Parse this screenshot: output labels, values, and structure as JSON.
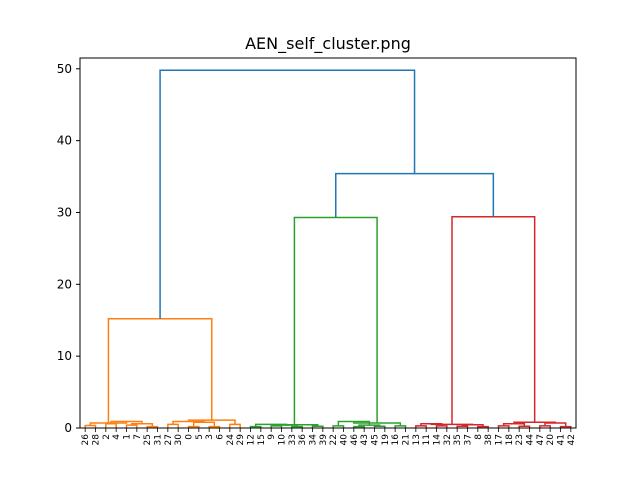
{
  "chart_data": {
    "type": "dendrogram",
    "title": "AEN_self_cluster.png",
    "xlabel": "",
    "ylabel": "",
    "ylim": [
      0,
      51.5
    ],
    "y_ticks": [
      0,
      10,
      20,
      30,
      40,
      50
    ],
    "grid": false,
    "leaf_labels": [
      "26",
      "28",
      "2",
      "4",
      "1",
      "7",
      "25",
      "31",
      "27",
      "30",
      "0",
      "5",
      "3",
      "6",
      "24",
      "29",
      "12",
      "15",
      "9",
      "10",
      "33",
      "36",
      "34",
      "39",
      "22",
      "40",
      "46",
      "43",
      "45",
      "19",
      "16",
      "21",
      "13",
      "11",
      "14",
      "32",
      "35",
      "37",
      "8",
      "38",
      "17",
      "18",
      "23",
      "44",
      "47",
      "20",
      "41",
      "42"
    ],
    "colors": {
      "orange": "#ff7f0e",
      "green": "#2ca02c",
      "red": "#d62728",
      "blue": "#1f77b4"
    },
    "links": [
      {
        "left": 0,
        "right": 1,
        "height": 0.35,
        "color": "orange"
      },
      {
        "left": 2,
        "right": 3,
        "height": 0.6,
        "color": "orange"
      },
      {
        "left": 4,
        "right": 5,
        "height": 0.4,
        "color": "orange"
      },
      {
        "left": 6,
        "right": 7,
        "height": 0.2,
        "color": "orange"
      },
      {
        "left": "4-5",
        "right": "6-7",
        "height": 0.6,
        "color": "orange"
      },
      {
        "left": "2-3",
        "right": "4-7",
        "height": 0.9,
        "color": "orange"
      },
      {
        "left": "0-1",
        "right": "2-7",
        "height": 0.7,
        "color": "orange"
      },
      {
        "left": 8,
        "right": 9,
        "height": 0.5,
        "color": "orange"
      },
      {
        "left": 10,
        "right": 11,
        "height": 0.2,
        "color": "orange"
      },
      {
        "left": 12,
        "right": 13,
        "height": 0.2,
        "color": "orange"
      },
      {
        "left": "10-11",
        "right": "12-13",
        "height": 0.8,
        "color": "orange"
      },
      {
        "left": "8-9",
        "right": "10-13",
        "height": 0.9,
        "color": "orange"
      },
      {
        "left": 14,
        "right": 15,
        "height": 0.5,
        "color": "orange"
      },
      {
        "left": "8-13",
        "right": "14-15",
        "height": 1.1,
        "color": "orange"
      },
      {
        "left": "0-7",
        "right": "8-15",
        "height": 15.2,
        "color": "orange"
      },
      {
        "left": 16,
        "right": 17,
        "height": 0.2,
        "color": "green"
      },
      {
        "left": 18,
        "right": 19,
        "height": 0.3,
        "color": "green"
      },
      {
        "left": 20,
        "right": 21,
        "height": 0.2,
        "color": "green"
      },
      {
        "left": "18-19",
        "right": "20-21",
        "height": 0.4,
        "color": "green"
      },
      {
        "left": "16-17",
        "right": "18-21",
        "height": 0.5,
        "color": "green"
      },
      {
        "left": 22,
        "right": 23,
        "height": 0.25,
        "color": "green"
      },
      {
        "left": "16-21",
        "right": "22-23",
        "height": 0.45,
        "color": "green"
      },
      {
        "left": 24,
        "right": 25,
        "height": 0.3,
        "color": "green"
      },
      {
        "left": 26,
        "right": 27,
        "height": 0.2,
        "color": "green"
      },
      {
        "left": 28,
        "right": 29,
        "height": 0.25,
        "color": "green"
      },
      {
        "left": "26-27",
        "right": "28-29",
        "height": 0.4,
        "color": "green"
      },
      {
        "left": "24-25",
        "right": "26-29",
        "height": 0.9,
        "color": "green"
      },
      {
        "left": 30,
        "right": 31,
        "height": 0.3,
        "color": "green"
      },
      {
        "left": "24-29",
        "right": "30-31",
        "height": 0.7,
        "color": "green"
      },
      {
        "left": "16-23",
        "right": "24-31",
        "height": 29.3,
        "color": "green"
      },
      {
        "left": 32,
        "right": 33,
        "height": 0.3,
        "color": "red"
      },
      {
        "left": 34,
        "right": 35,
        "height": 0.3,
        "color": "red"
      },
      {
        "left": "32-33",
        "right": "34-35",
        "height": 0.6,
        "color": "red"
      },
      {
        "left": 36,
        "right": 37,
        "height": 0.25,
        "color": "red"
      },
      {
        "left": 38,
        "right": 39,
        "height": 0.2,
        "color": "red"
      },
      {
        "left": "36-37",
        "right": "38-39",
        "height": 0.45,
        "color": "red"
      },
      {
        "left": "32-35",
        "right": "36-39",
        "height": 0.5,
        "color": "red"
      },
      {
        "left": 40,
        "right": 41,
        "height": 0.3,
        "color": "red"
      },
      {
        "left": 42,
        "right": 43,
        "height": 0.25,
        "color": "red"
      },
      {
        "left": "40-41",
        "right": "42-43",
        "height": 0.6,
        "color": "red"
      },
      {
        "left": 44,
        "right": 45,
        "height": 0.3,
        "color": "red"
      },
      {
        "left": 46,
        "right": 47,
        "height": 0.2,
        "color": "red"
      },
      {
        "left": "44-45",
        "right": "46-47",
        "height": 0.7,
        "color": "red"
      },
      {
        "left": "40-43",
        "right": "44-47",
        "height": 0.8,
        "color": "red"
      },
      {
        "left": "32-39",
        "right": "40-47",
        "height": 29.4,
        "color": "red"
      },
      {
        "left": "16-31",
        "right": "32-47",
        "height": 35.4,
        "color": "blue"
      },
      {
        "left": "0-15",
        "right": "16-47",
        "height": 49.8,
        "color": "blue"
      }
    ]
  }
}
